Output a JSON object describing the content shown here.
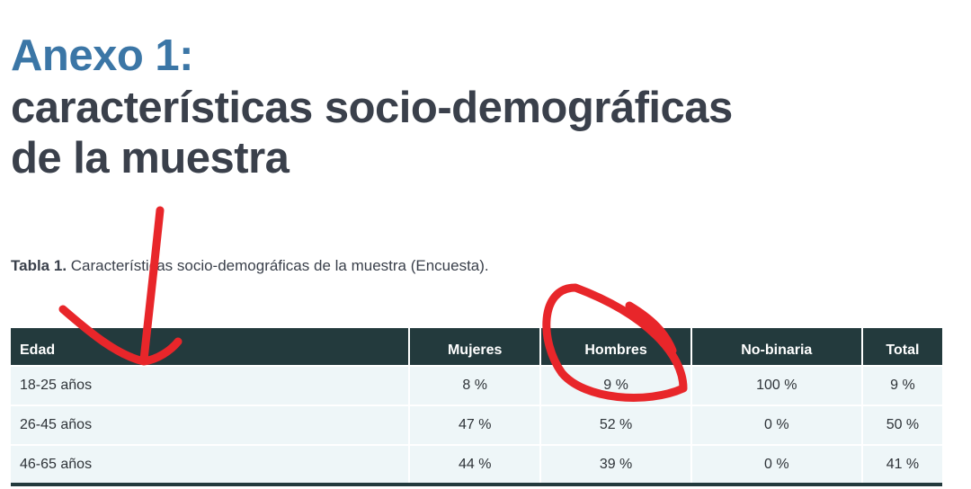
{
  "header": {
    "title_prefix": "Anexo 1:",
    "title_line1": "características socio-demográficas",
    "title_line2": "de la muestra"
  },
  "caption": {
    "label": "Tabla 1.",
    "text": "Características socio-demográficas de la muestra (Encuesta)."
  },
  "table": {
    "columns": [
      "Edad",
      "Mujeres",
      "Hombres",
      "No-binaria",
      "Total"
    ],
    "rows": [
      [
        "18-25 años",
        "8 %",
        "9 %",
        "100 %",
        "9 %"
      ],
      [
        "26-45 años",
        "47 %",
        "52 %",
        "0 %",
        "50 %"
      ],
      [
        "46-65 años",
        "44 %",
        "39 %",
        "0 %",
        "41 %"
      ]
    ]
  }
}
